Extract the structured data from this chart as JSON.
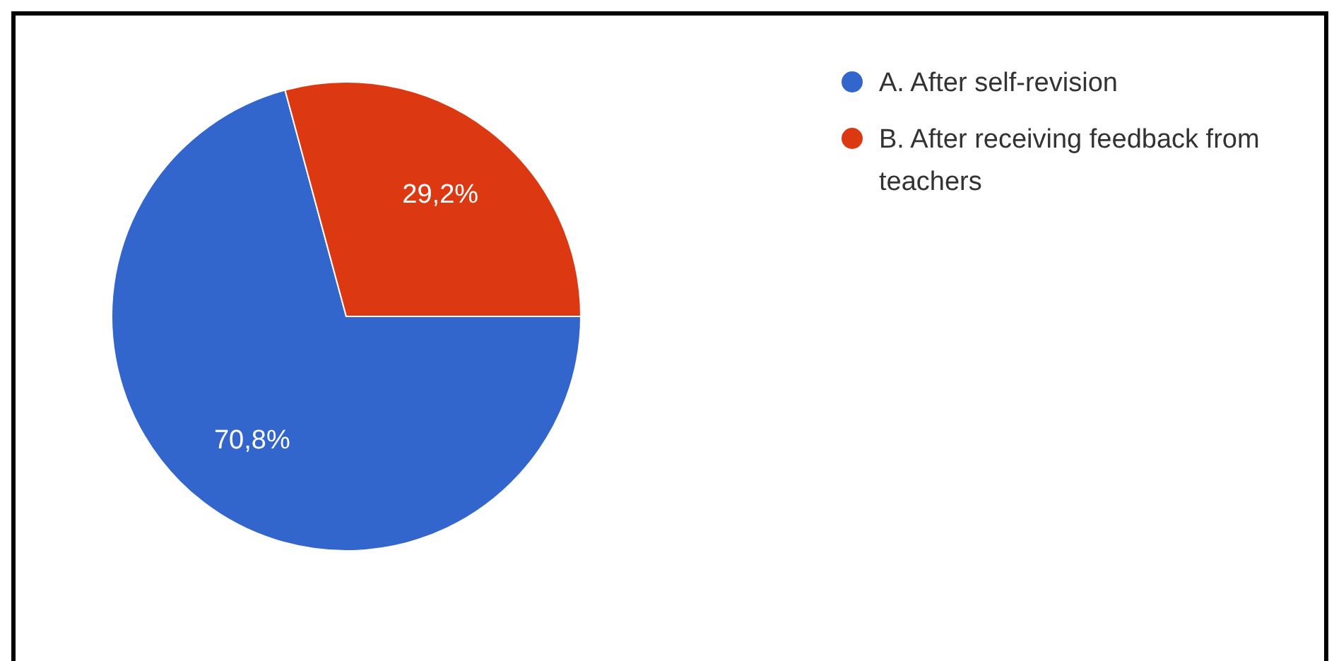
{
  "chart_data": {
    "type": "pie",
    "categories": [
      "A. After self-revision",
      "B. After receiving feedback from teachers"
    ],
    "values": [
      70.8,
      29.2
    ],
    "colors": [
      "#3366cc",
      "#dc3912"
    ],
    "value_labels": [
      "70,8%",
      "29,2%"
    ],
    "legend": "top right"
  }
}
